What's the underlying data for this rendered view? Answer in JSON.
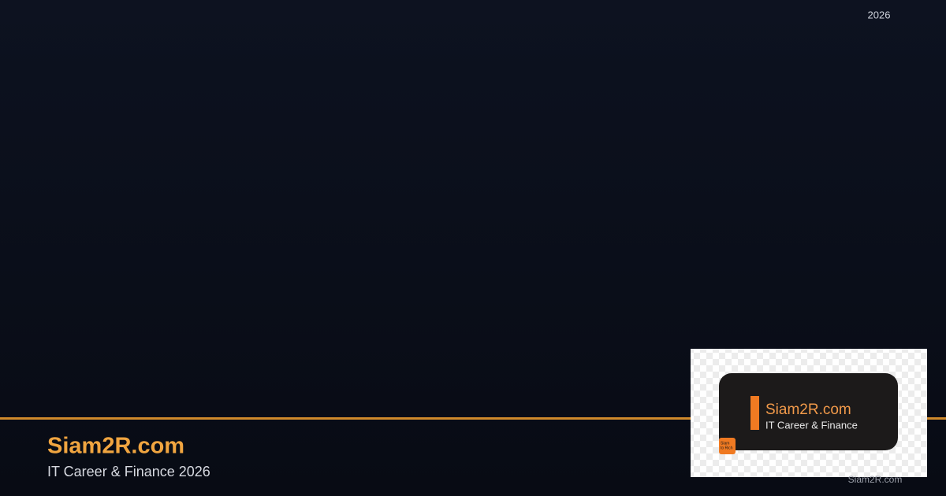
{
  "header": {
    "year": "2026"
  },
  "brand": {
    "name": "Siam2R.com",
    "tagline": "IT Career & Finance 2026"
  },
  "logo": {
    "name": "Siam2R.com",
    "tagline": "IT Career & Finance",
    "badge_line1": "Siam",
    "badge_line2": "to Rich"
  },
  "watermark": "Siam2R.com"
}
